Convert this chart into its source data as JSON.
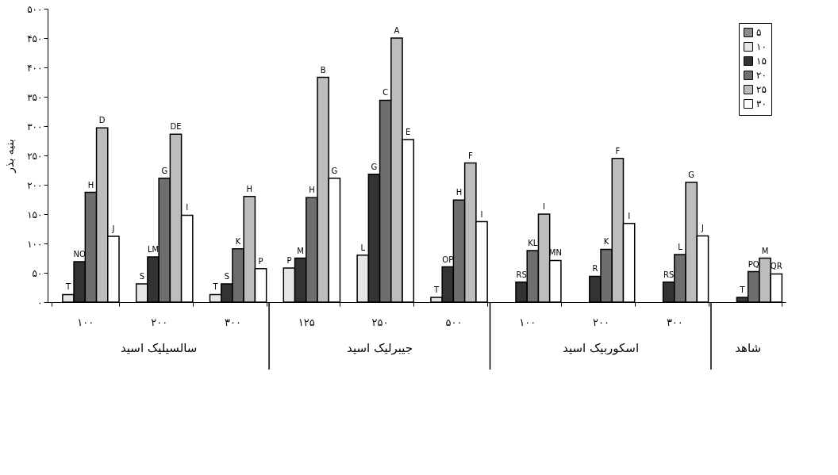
{
  "chart_data": {
    "type": "bar",
    "ylabel": "بنیه بذر",
    "categories": [
      "۱۰۰",
      "۲۰۰",
      "۳۰۰",
      "۱۲۵",
      "۲۵۰",
      "۵۰۰",
      "۱۰۰",
      "۲۰۰",
      "۳۰۰",
      null
    ],
    "annotations": [
      "سالسیلیک اسید",
      "جیبرلیک اسید",
      "اسکوربیک اسید",
      "شاهد"
    ],
    "ylim": [
      0,
      500
    ],
    "yticks": [
      {
        "value": 0,
        "label": "۰"
      },
      {
        "value": 50,
        "label": "۵۰"
      },
      {
        "value": 100,
        "label": "۱۰۰"
      },
      {
        "value": 150,
        "label": "۱۵۰"
      },
      {
        "value": 200,
        "label": "۲۰۰"
      },
      {
        "value": 250,
        "label": "۲۵۰"
      },
      {
        "value": 300,
        "label": "۳۰۰"
      },
      {
        "value": 350,
        "label": "۳۵۰"
      },
      {
        "value": 400,
        "label": "۴۰۰"
      },
      {
        "value": 450,
        "label": "۴۵۰"
      },
      {
        "value": 500,
        "label": "۵۰۰"
      }
    ],
    "grid": false,
    "legend": "top right",
    "series": [
      {
        "name": "۵",
        "color": "#8c8c8c",
        "values": [
          null,
          null,
          null,
          null,
          null,
          null,
          null,
          null,
          null,
          null
        ],
        "value_labels": [
          null,
          null,
          null,
          null,
          null,
          null,
          null,
          null,
          null,
          null
        ]
      },
      {
        "name": "۱۰",
        "color": "#e6e6e6",
        "values": [
          13,
          31,
          13,
          58,
          80,
          8,
          null,
          null,
          null,
          null
        ],
        "value_labels": [
          "T",
          "S",
          "T",
          "P",
          "L",
          "T",
          null,
          null,
          null,
          null
        ]
      },
      {
        "name": "۱۵",
        "color": "#333333",
        "values": [
          69,
          77,
          31,
          75,
          218,
          60,
          34,
          44,
          34,
          8
        ],
        "value_labels": [
          "NO",
          "LM",
          "S",
          "M",
          "G",
          "OP",
          "RS",
          "R",
          "RS",
          "T"
        ]
      },
      {
        "name": "۲۰",
        "color": "#6e6e6e",
        "values": [
          187,
          211,
          91,
          178,
          344,
          174,
          88,
          90,
          81,
          52
        ],
        "value_labels": [
          "H",
          "G",
          "K",
          "H",
          "C",
          "H",
          "KL",
          "K",
          "L",
          "PQ"
        ]
      },
      {
        "name": "۲۵",
        "color": "#bdbdbd",
        "values": [
          297,
          286,
          180,
          383,
          450,
          237,
          150,
          245,
          204,
          75
        ],
        "value_labels": [
          "D",
          "DE",
          "H",
          "B",
          "A",
          "F",
          "I",
          "F",
          "G",
          "M"
        ]
      },
      {
        "name": "۳۰",
        "color": "#ffffff",
        "values": [
          112,
          148,
          57,
          211,
          277,
          137,
          71,
          134,
          113,
          48
        ],
        "value_labels": [
          "J",
          "I",
          "P",
          "G",
          "E",
          "I",
          "MN",
          "I",
          "J",
          "QR"
        ]
      }
    ]
  }
}
